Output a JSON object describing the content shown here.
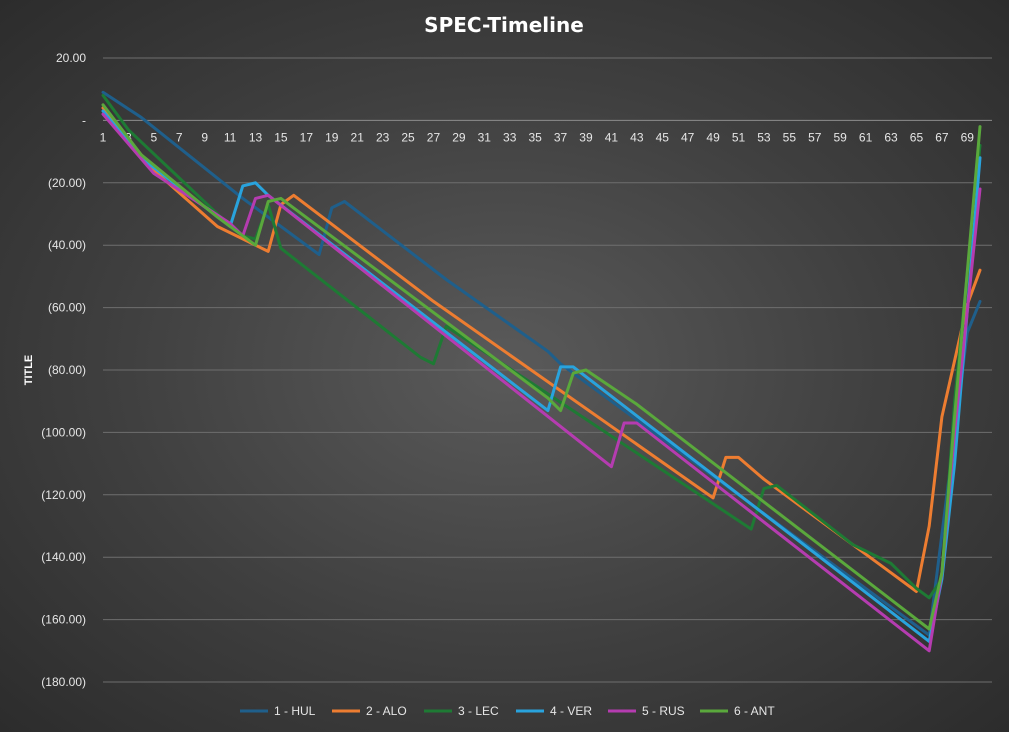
{
  "chart_data": {
    "type": "line",
    "title": "SPEC-Timeline",
    "xlabel": "",
    "ylabel": "TITLE",
    "ylim": [
      -180,
      20
    ],
    "yticks": [
      20,
      0,
      -20,
      -40,
      -60,
      -80,
      -100,
      -120,
      -140,
      -160,
      -180
    ],
    "ytick_labels": [
      "20.00",
      "-",
      "(20.00)",
      "(40.00)",
      "(60.00)",
      "(80.00)",
      "(100.00)",
      "(120.00)",
      "(140.00)",
      "(160.00)",
      "(180.00)"
    ],
    "x_range": [
      1,
      70
    ],
    "xtick_labels": [
      "1",
      "3",
      "5",
      "7",
      "9",
      "11",
      "13",
      "15",
      "17",
      "19",
      "21",
      "23",
      "25",
      "27",
      "29",
      "31",
      "33",
      "35",
      "37",
      "39",
      "41",
      "43",
      "45",
      "47",
      "49",
      "51",
      "53",
      "55",
      "57",
      "59",
      "61",
      "63",
      "65",
      "67",
      "69"
    ],
    "legend_position": "bottom",
    "grid": true,
    "series": [
      {
        "name": "1 - HUL",
        "color": "#1f5f8b",
        "points": [
          [
            1,
            9
          ],
          [
            4,
            1
          ],
          [
            12,
            -25
          ],
          [
            18,
            -43
          ],
          [
            19,
            -28
          ],
          [
            20,
            -26
          ],
          [
            28,
            -51
          ],
          [
            36,
            -74
          ],
          [
            37,
            -78
          ],
          [
            66,
            -165
          ],
          [
            69,
            -68
          ],
          [
            70,
            -58
          ]
        ]
      },
      {
        "name": "2 - ALO",
        "color": "#ed7d31",
        "points": [
          [
            1,
            4
          ],
          [
            3,
            -6
          ],
          [
            5,
            -16
          ],
          [
            10,
            -34
          ],
          [
            13,
            -40
          ],
          [
            14,
            -42
          ],
          [
            15,
            -27
          ],
          [
            16,
            -24
          ],
          [
            27,
            -58
          ],
          [
            49,
            -121
          ],
          [
            50,
            -108
          ],
          [
            51,
            -108
          ],
          [
            53,
            -115
          ],
          [
            65,
            -151
          ],
          [
            66,
            -130
          ],
          [
            67,
            -95
          ],
          [
            69,
            -59
          ],
          [
            70,
            -48
          ]
        ]
      },
      {
        "name": "3 - LEC",
        "color": "#1e7a34",
        "points": [
          [
            1,
            8
          ],
          [
            3,
            -3
          ],
          [
            10,
            -30
          ],
          [
            12,
            -37
          ],
          [
            13,
            -38
          ],
          [
            14,
            -27
          ],
          [
            15,
            -41
          ],
          [
            26,
            -76
          ],
          [
            27,
            -78
          ],
          [
            28,
            -66
          ],
          [
            52,
            -131
          ],
          [
            53,
            -118
          ],
          [
            54,
            -117
          ],
          [
            60,
            -136
          ],
          [
            63,
            -142
          ],
          [
            65,
            -150
          ],
          [
            66,
            -153
          ],
          [
            67,
            -147
          ],
          [
            68,
            -90
          ],
          [
            70,
            -8
          ]
        ]
      },
      {
        "name": "4 - VER",
        "color": "#29a3dd",
        "points": [
          [
            1,
            3
          ],
          [
            4,
            -12
          ],
          [
            11,
            -34
          ],
          [
            12,
            -21
          ],
          [
            13,
            -20
          ],
          [
            14,
            -24
          ],
          [
            36,
            -93
          ],
          [
            37,
            -79
          ],
          [
            38,
            -79
          ],
          [
            66,
            -167
          ],
          [
            67,
            -147
          ],
          [
            68,
            -110
          ],
          [
            70,
            -12
          ]
        ]
      },
      {
        "name": "5 - RUS",
        "color": "#b53cb0",
        "points": [
          [
            1,
            2
          ],
          [
            5,
            -17
          ],
          [
            11,
            -33
          ],
          [
            12,
            -37
          ],
          [
            13,
            -25
          ],
          [
            14,
            -24
          ],
          [
            41,
            -111
          ],
          [
            42,
            -97
          ],
          [
            43,
            -97
          ],
          [
            66,
            -170
          ],
          [
            67,
            -145
          ],
          [
            68,
            -100
          ],
          [
            70,
            -22
          ]
        ]
      },
      {
        "name": "6 - ANT",
        "color": "#5aa83c",
        "points": [
          [
            1,
            5
          ],
          [
            4,
            -11
          ],
          [
            10,
            -31
          ],
          [
            13,
            -40
          ],
          [
            14,
            -26
          ],
          [
            15,
            -25
          ],
          [
            36,
            -89
          ],
          [
            37,
            -93
          ],
          [
            38,
            -81
          ],
          [
            39,
            -80
          ],
          [
            43,
            -91
          ],
          [
            66,
            -163
          ],
          [
            67,
            -145
          ],
          [
            68,
            -95
          ],
          [
            70,
            -2
          ]
        ]
      }
    ]
  }
}
